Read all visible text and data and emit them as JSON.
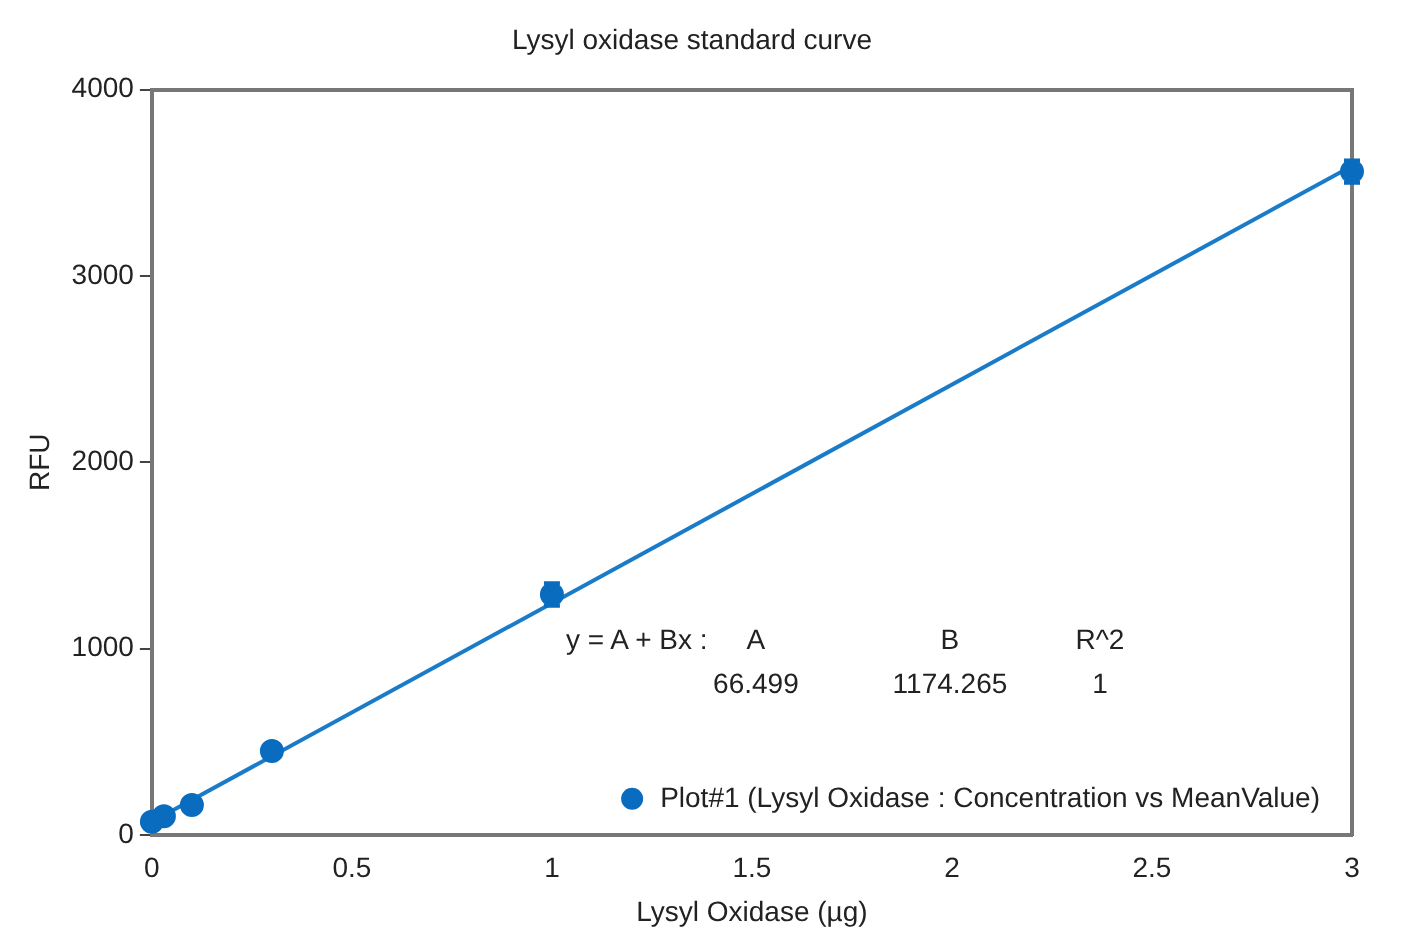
{
  "chart_data": {
    "type": "scatter",
    "title": "Lysyl oxidase standard curve",
    "xlabel": "Lysyl Oxidase (µg)",
    "ylabel": "RFU",
    "series": [
      {
        "name": "Plot#1 (Lysyl Oxidase : Concentration vs MeanValue)",
        "color": "#0a6cbf",
        "x": [
          0,
          0.03,
          0.1,
          0.3,
          1,
          3
        ],
        "values": [
          70,
          100,
          160,
          450,
          1290,
          3560
        ],
        "errors": [
          null,
          null,
          null,
          null,
          60,
          60
        ]
      },
      {
        "type": "line",
        "color": "#1a7cc9",
        "x": [
          0,
          3
        ],
        "values": [
          70,
          3590
        ],
        "marker": "none"
      }
    ],
    "xlim": [
      0,
      3
    ],
    "xticks": [
      0,
      0.5,
      1,
      1.5,
      2,
      2.5,
      3
    ],
    "ylim": [
      0,
      4000
    ],
    "yticks": [
      0,
      1000,
      2000,
      3000,
      4000
    ],
    "grid": false,
    "legend": "bottom right",
    "marker": "circle",
    "annotations": [
      "y = A + Bx :",
      "A",
      "66.499",
      "B",
      "1174.265",
      "R^2",
      "1"
    ]
  }
}
